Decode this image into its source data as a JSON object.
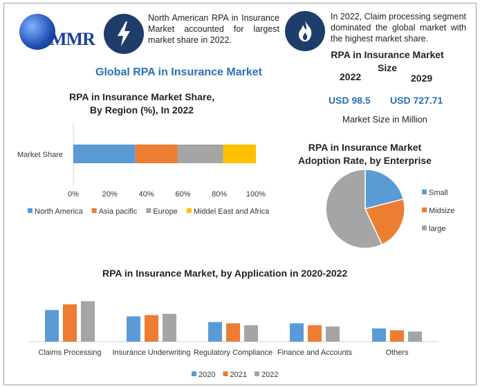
{
  "logo": {
    "text": "MMR"
  },
  "facts": [
    {
      "icon": "lightning-icon",
      "text": "North American RPA in Insurance Market accounted for largest market share in 2022."
    },
    {
      "icon": "flame-icon",
      "text": "In 2022, Claim processing segment dominated the global market with the highest market share."
    }
  ],
  "main_title": "Global RPA in Insurance Market",
  "market_size": {
    "title": "RPA in Insurance Market Size",
    "year_a": "2022",
    "year_b": "2029",
    "value_a": "USD 98.5",
    "value_b": "USD 727.71",
    "unit": "Market Size in Million"
  },
  "colors": {
    "blue": "#5b9bd5",
    "orange": "#ed7d31",
    "gray": "#a5a5a5",
    "yellow": "#ffc000",
    "accent": "#2a6fb5",
    "icon_bg": "#1f3d6b"
  },
  "chart_data": [
    {
      "type": "bar",
      "orientation": "horizontal-stacked",
      "title": "RPA in Insurance Market Share, By Region (%), In 2022",
      "categories": [
        "Market Share"
      ],
      "series": [
        {
          "name": "North America",
          "values": [
            34
          ]
        },
        {
          "name": "Asia pacific",
          "values": [
            23
          ]
        },
        {
          "name": "Europe",
          "values": [
            25
          ]
        },
        {
          "name": "Middel East and Africa",
          "values": [
            18
          ]
        }
      ],
      "xlim": [
        0,
        100
      ],
      "xticks": [
        "0%",
        "20%",
        "40%",
        "60%",
        "80%",
        "100%"
      ],
      "legend": "bottom"
    },
    {
      "type": "pie",
      "title": "RPA in Insurance Market Adoption Rate, by Enterprise",
      "labels": [
        "Small",
        "Midsize",
        "large"
      ],
      "values": [
        21,
        22,
        57
      ],
      "legend": "right"
    },
    {
      "type": "bar",
      "title": "RPA in Insurance Market, by Application in 2020-2022",
      "categories": [
        "Claims Processing",
        "Insurance Underwriting",
        "Regulatory Compliance",
        "Finance and Accounts",
        "Others"
      ],
      "series": [
        {
          "name": "2020",
          "values": [
            50,
            40,
            31,
            29,
            21
          ]
        },
        {
          "name": "2021",
          "values": [
            59,
            42,
            29,
            26,
            18
          ]
        },
        {
          "name": "2022",
          "values": [
            64,
            44,
            26,
            24,
            16
          ]
        }
      ],
      "ylim": [
        0,
        70
      ],
      "legend": "bottom"
    }
  ]
}
